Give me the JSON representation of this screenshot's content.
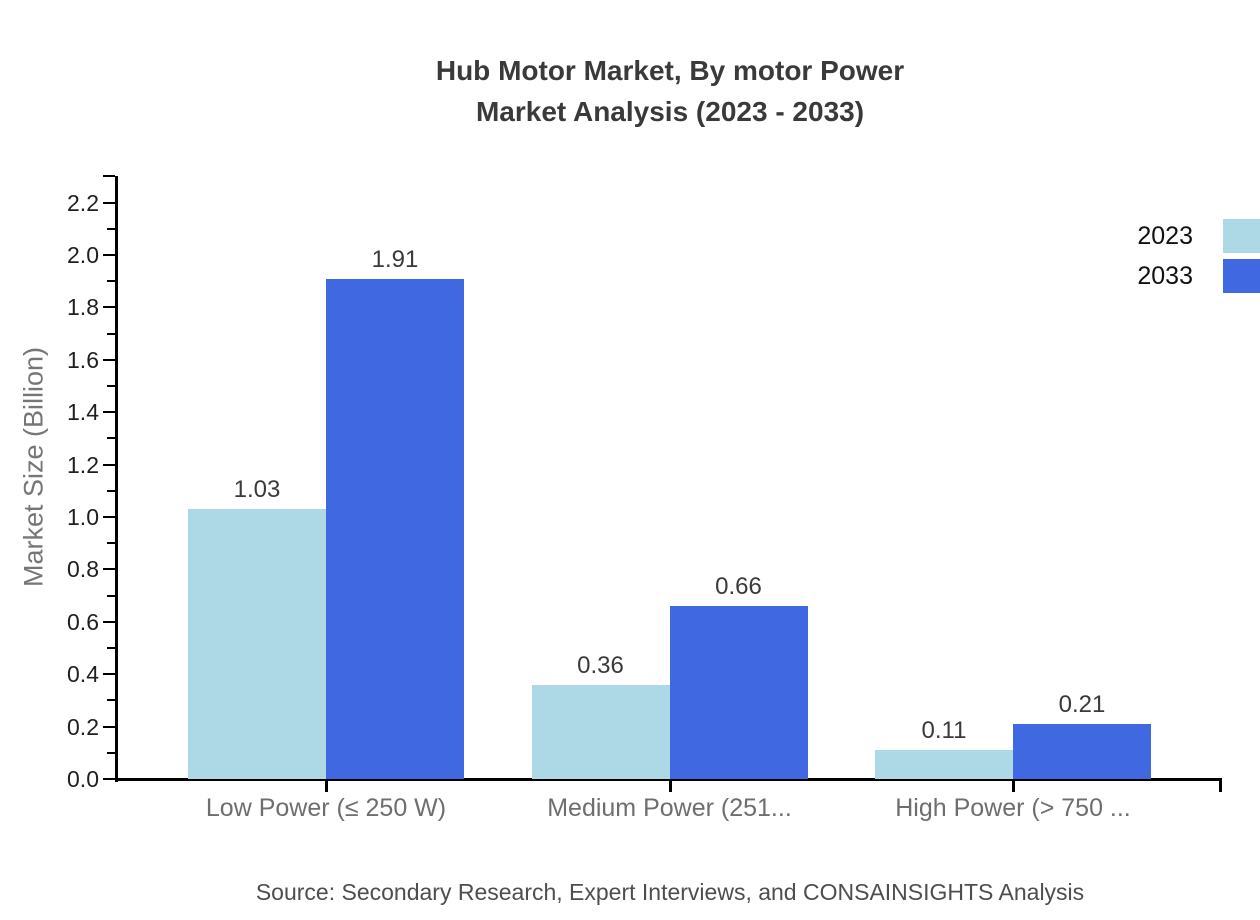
{
  "title": {
    "line1": "Hub Motor Market, By motor Power",
    "line2": "Market Analysis (2023 - 2033)"
  },
  "chart_data": {
    "type": "bar",
    "categories": [
      "Low Power (≤ 250 W)",
      "Medium Power (251...",
      "High Power (> 750 ..."
    ],
    "series": [
      {
        "name": "2023",
        "color": "#ADD8E6",
        "values": [
          1.03,
          0.36,
          0.11
        ]
      },
      {
        "name": "2033",
        "color": "#4068E1",
        "values": [
          1.91,
          0.66,
          0.21
        ]
      }
    ],
    "ylabel": "Market Size (Billion)",
    "xlabel": "",
    "ylim": [
      0,
      2.2
    ],
    "yticks": [
      "0.0",
      "0.2",
      "0.4",
      "0.6",
      "0.8",
      "1.0",
      "1.2",
      "1.4",
      "1.6",
      "1.8",
      "2.0",
      "2.2"
    ],
    "minor_tick_step": 0.1,
    "grid": false,
    "value_labels": true,
    "value_format_decimals": 2,
    "legend_position": "right"
  },
  "source": "Source: Secondary Research, Expert Interviews, and CONSAINSIGHTS Analysis"
}
